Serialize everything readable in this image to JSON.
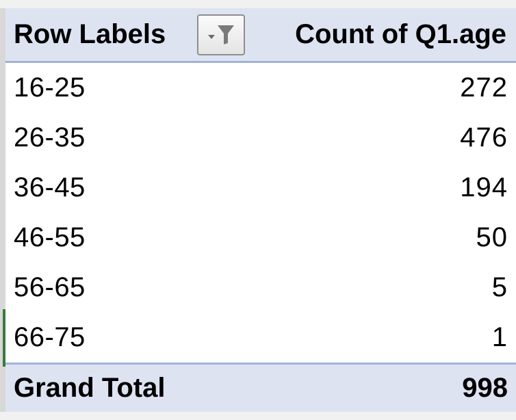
{
  "pivot": {
    "header": {
      "row_label": "Row Labels",
      "value_label": "Count of Q1.age",
      "filter_icon": "filter-dropdown-icon"
    },
    "rows": [
      {
        "label": "16-25",
        "value": "272"
      },
      {
        "label": "26-35",
        "value": "476"
      },
      {
        "label": "36-45",
        "value": "194"
      },
      {
        "label": "46-55",
        "value": "50"
      },
      {
        "label": "56-65",
        "value": "5"
      },
      {
        "label": "66-75",
        "value": "1"
      }
    ],
    "total": {
      "label": "Grand Total",
      "value": "998"
    }
  },
  "colors": {
    "header_fill": "#dde3f1",
    "header_border": "#9fb2d9"
  }
}
